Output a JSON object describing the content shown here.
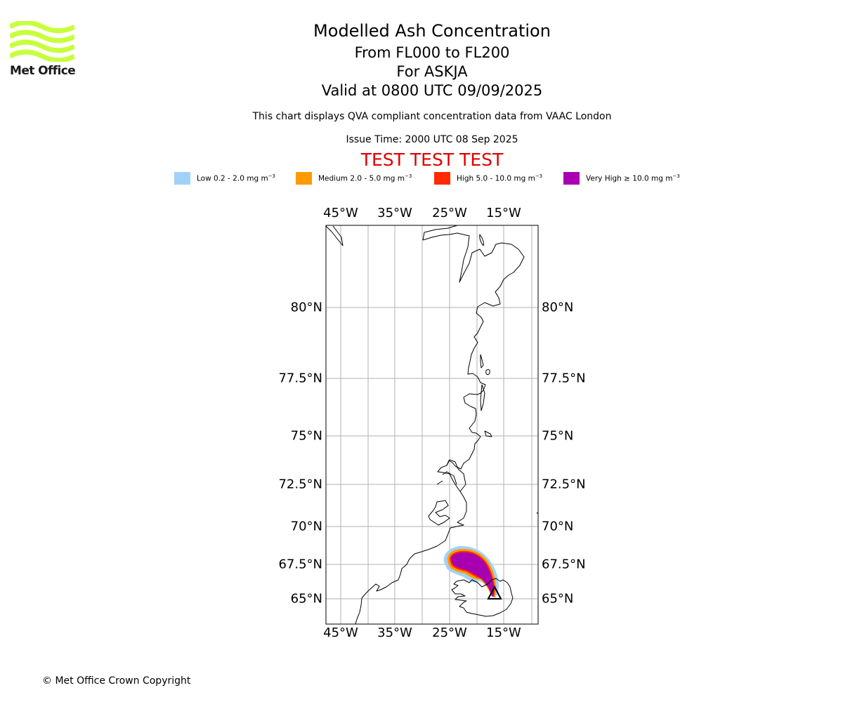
{
  "logo": {
    "text": "Met Office",
    "color": "#c8ff3c"
  },
  "title": {
    "main": "Modelled Ash Concentration",
    "levels": "From FL000 to FL200",
    "volcano": "For ASKJA",
    "valid": "Valid at 0800 UTC 09/09/2025"
  },
  "info": {
    "compliance": "This chart displays QVA compliant concentration data from VAAC London",
    "issue_time": "Issue Time: 2000 UTC 08 Sep 2025"
  },
  "test_banner": "TEST TEST TEST",
  "legend": [
    {
      "label": "Low 0.2 - 2.0 mg m",
      "unit_exp": "−3",
      "color": "#a0d2f8"
    },
    {
      "label": "Medium 2.0 - 5.0 mg m",
      "unit_exp": "−3",
      "color": "#ff9a00"
    },
    {
      "label": "High 5.0 - 10.0 mg m",
      "unit_exp": "−3",
      "color": "#ff2a00"
    },
    {
      "label": "Very High ≥ 10.0 mg m",
      "unit_exp": "−3",
      "color": "#a800b0"
    }
  ],
  "map": {
    "longitude_ticks": [
      "45°W",
      "35°W",
      "25°W",
      "15°W"
    ],
    "latitude_ticks": [
      "80°N",
      "77.5°N",
      "75°N",
      "72.5°N",
      "70°N",
      "67.5°N",
      "65°N"
    ],
    "grid_color": "#b0b0b0"
  },
  "volcano_marker": "triangle",
  "copyright": "© Met Office Crown Copyright"
}
